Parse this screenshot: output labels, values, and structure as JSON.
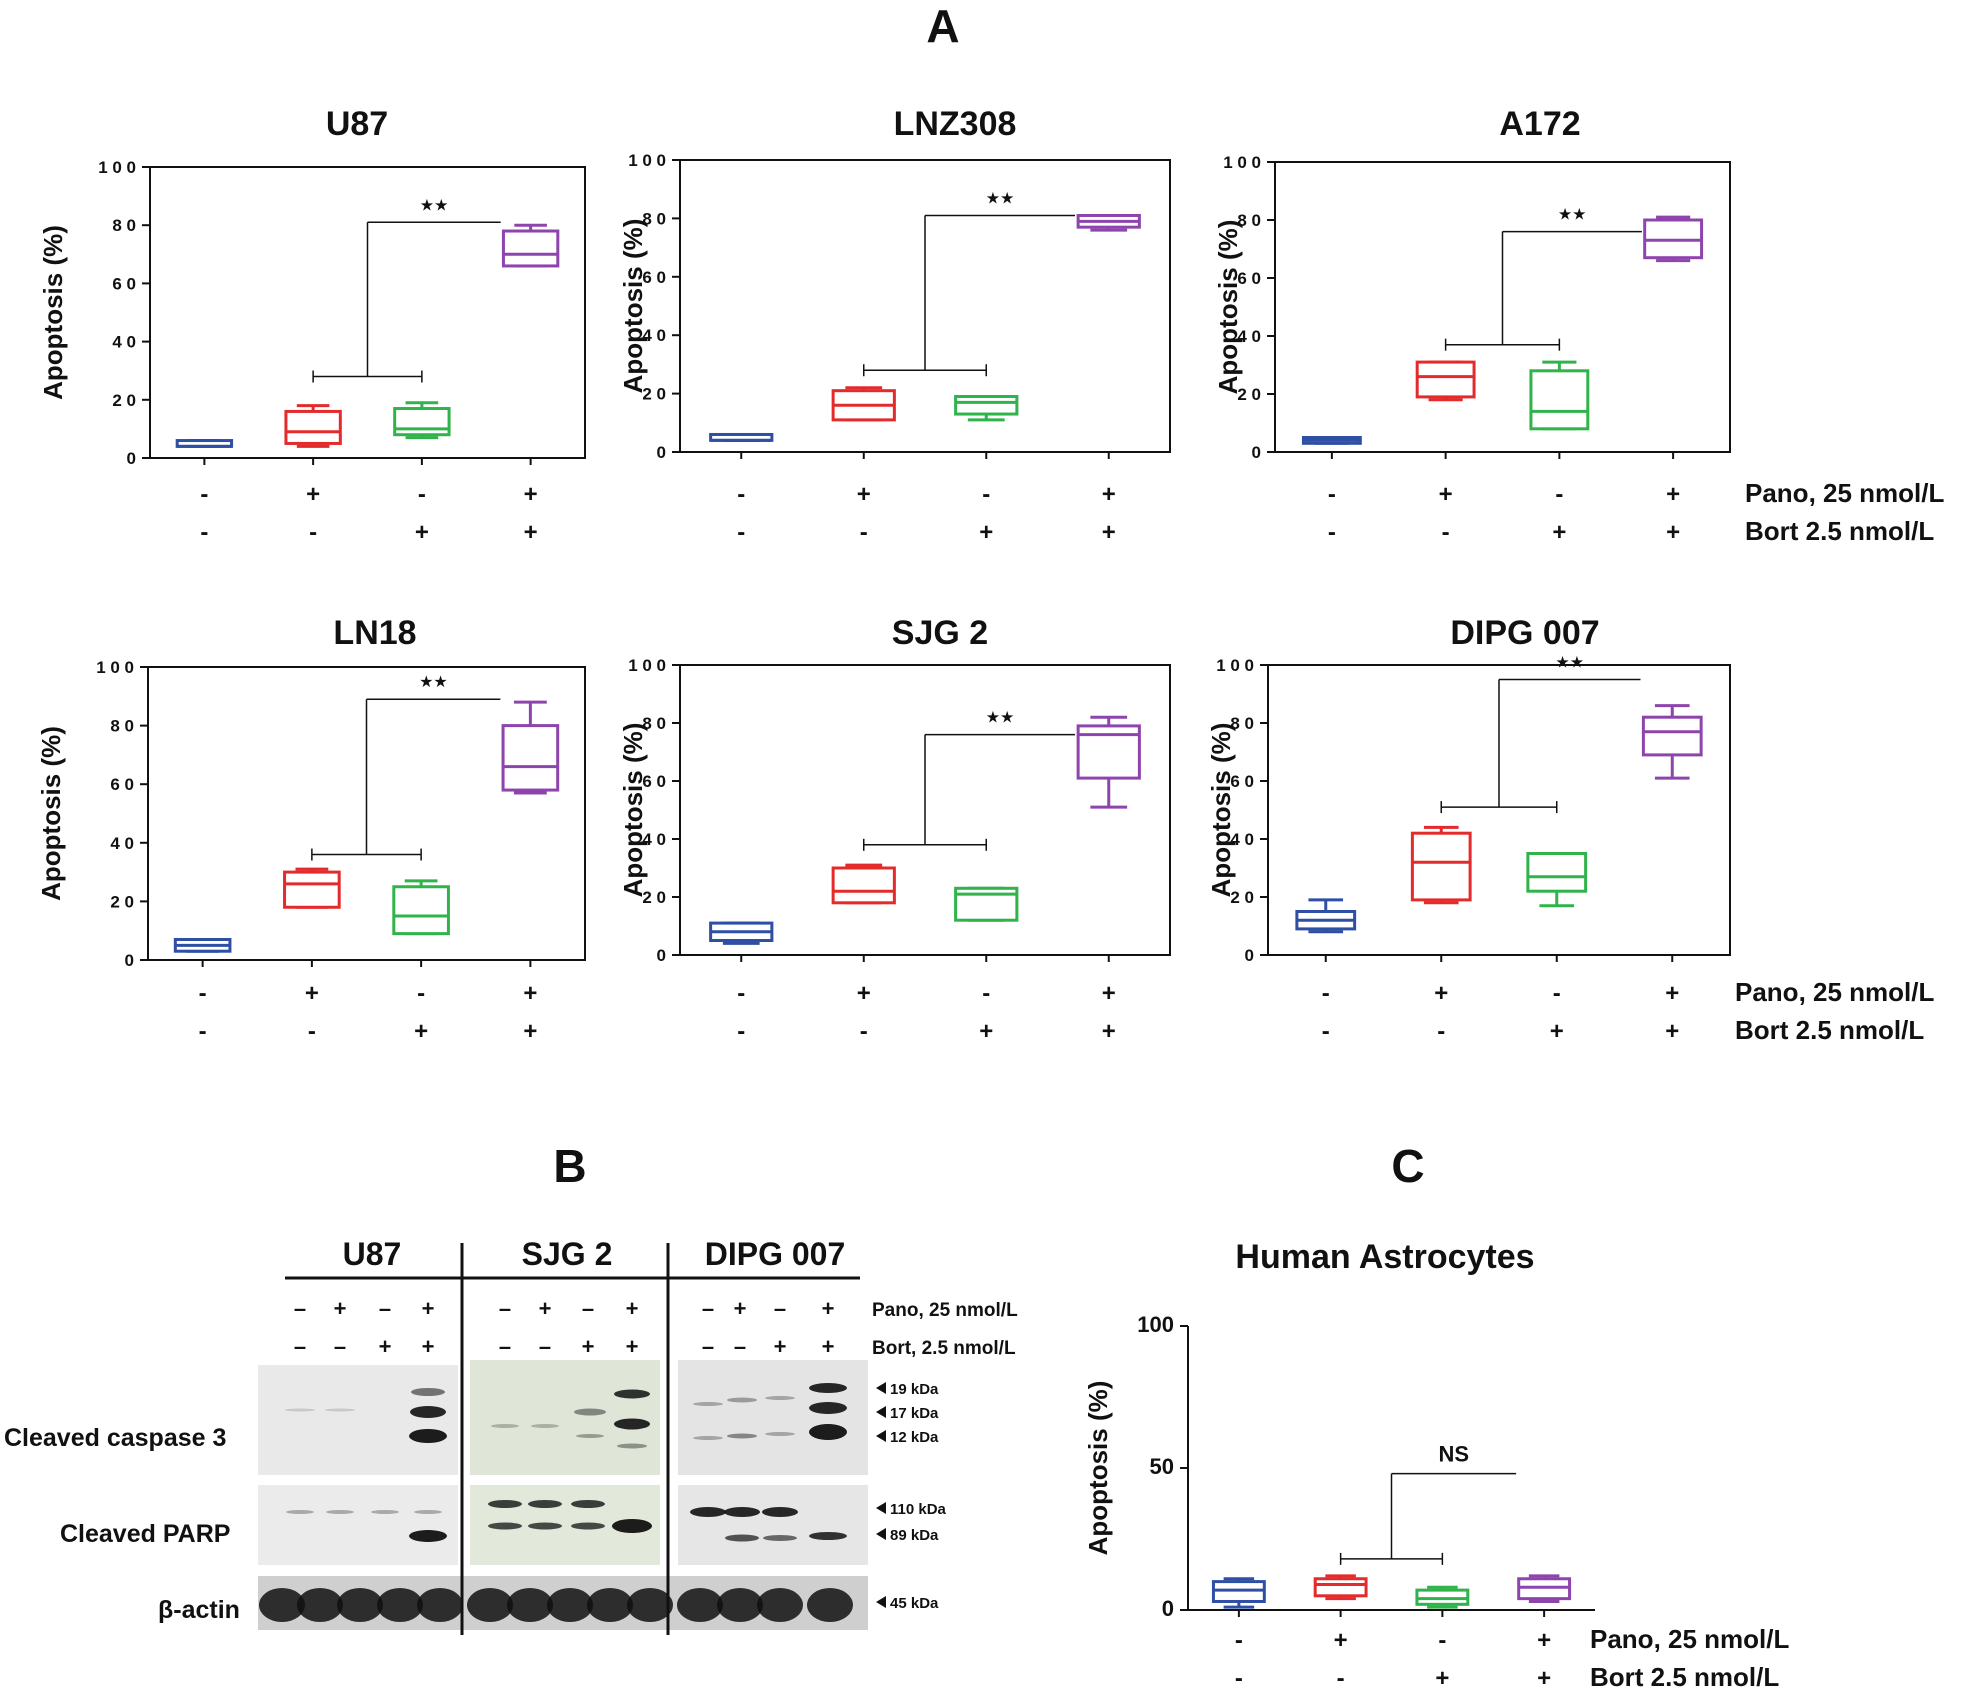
{
  "figure": {
    "label_a": "A",
    "label_b": "B",
    "label_c": "C",
    "y_axis_label": "Apoptosis (%)",
    "condition_labels": [
      "Pano, 25 nmol/L",
      "Bort 2.5 nmol/L"
    ],
    "pano_signs": [
      "-",
      "+",
      "-",
      "+"
    ],
    "bort_signs": [
      "-",
      "-",
      "+",
      "+"
    ],
    "group_colors": [
      "#2e4fa3",
      "#e32b2b",
      "#2fb34a",
      "#8e44ad"
    ]
  },
  "chart_data": [
    {
      "type": "box",
      "title": "U87",
      "ylim": [
        0,
        100
      ],
      "yticks": [
        "0",
        "20",
        "40",
        "60",
        "80",
        "100"
      ],
      "groups": [
        {
          "min": 4,
          "q1": 4,
          "median": 4,
          "q3": 6,
          "max": 6
        },
        {
          "min": 4,
          "q1": 5,
          "median": 9,
          "q3": 16,
          "max": 18
        },
        {
          "min": 7,
          "q1": 8,
          "median": 10,
          "q3": 17,
          "max": 19
        },
        {
          "min": 66,
          "q1": 66,
          "median": 70,
          "q3": 78,
          "max": 80
        }
      ],
      "significance": "★★",
      "comparison": {
        "from": [
          1,
          2
        ],
        "to": 3,
        "low_y": 28,
        "high_y": 81
      }
    },
    {
      "type": "box",
      "title": "LNZ308",
      "ylim": [
        0,
        100
      ],
      "yticks": [
        "0",
        "20",
        "40",
        "60",
        "80",
        "100"
      ],
      "groups": [
        {
          "min": 4,
          "q1": 4,
          "median": 4,
          "q3": 6,
          "max": 6
        },
        {
          "min": 11,
          "q1": 11,
          "median": 16,
          "q3": 21,
          "max": 22
        },
        {
          "min": 11,
          "q1": 13,
          "median": 17,
          "q3": 19,
          "max": 19
        },
        {
          "min": 76,
          "q1": 77,
          "median": 79,
          "q3": 81,
          "max": 81
        }
      ],
      "significance": "★★",
      "comparison": {
        "from": [
          1,
          2
        ],
        "to": 3,
        "low_y": 28,
        "high_y": 81
      }
    },
    {
      "type": "box",
      "title": "A172",
      "ylim": [
        0,
        100
      ],
      "yticks": [
        "0",
        "20",
        "40",
        "60",
        "80",
        "100"
      ],
      "groups": [
        {
          "min": 3,
          "q1": 3,
          "median": 4,
          "q3": 5,
          "max": 5
        },
        {
          "min": 18,
          "q1": 19,
          "median": 26,
          "q3": 31,
          "max": 31
        },
        {
          "min": 8,
          "q1": 8,
          "median": 14,
          "q3": 28,
          "max": 31
        },
        {
          "min": 66,
          "q1": 67,
          "median": 73,
          "q3": 80,
          "max": 81
        }
      ],
      "significance": "★★",
      "comparison": {
        "from": [
          1,
          2
        ],
        "to": 3,
        "low_y": 37,
        "high_y": 76
      }
    },
    {
      "type": "box",
      "title": "LN18",
      "ylim": [
        0,
        100
      ],
      "yticks": [
        "0",
        "20",
        "40",
        "60",
        "80",
        "100"
      ],
      "groups": [
        {
          "min": 3,
          "q1": 3,
          "median": 5,
          "q3": 7,
          "max": 7
        },
        {
          "min": 18,
          "q1": 18,
          "median": 26,
          "q3": 30,
          "max": 31
        },
        {
          "min": 9,
          "q1": 9,
          "median": 15,
          "q3": 25,
          "max": 27
        },
        {
          "min": 57,
          "q1": 58,
          "median": 66,
          "q3": 80,
          "max": 88
        }
      ],
      "significance": "★★",
      "comparison": {
        "from": [
          1,
          2
        ],
        "to": 3,
        "low_y": 36,
        "high_y": 89
      }
    },
    {
      "type": "box",
      "title": "SJG 2",
      "ylim": [
        0,
        100
      ],
      "yticks": [
        "0",
        "20",
        "40",
        "60",
        "80",
        "100"
      ],
      "groups": [
        {
          "min": 4,
          "q1": 5,
          "median": 8,
          "q3": 11,
          "max": 11
        },
        {
          "min": 18,
          "q1": 18,
          "median": 22,
          "q3": 30,
          "max": 31
        },
        {
          "min": 12,
          "q1": 12,
          "median": 21,
          "q3": 23,
          "max": 23
        },
        {
          "min": 51,
          "q1": 61,
          "median": 76,
          "q3": 79,
          "max": 82
        }
      ],
      "significance": "★★",
      "comparison": {
        "from": [
          1,
          2
        ],
        "to": 3,
        "low_y": 38,
        "high_y": 76
      }
    },
    {
      "type": "box",
      "title": "DIPG 007",
      "ylim": [
        0,
        100
      ],
      "yticks": [
        "0",
        "20",
        "40",
        "60",
        "80",
        "100"
      ],
      "groups": [
        {
          "min": 8,
          "q1": 9,
          "median": 12,
          "q3": 15,
          "max": 19
        },
        {
          "min": 18,
          "q1": 19,
          "median": 32,
          "q3": 42,
          "max": 44
        },
        {
          "min": 17,
          "q1": 22,
          "median": 27,
          "q3": 35,
          "max": 35
        },
        {
          "min": 61,
          "q1": 69,
          "median": 77,
          "q3": 82,
          "max": 86
        }
      ],
      "significance": "★★",
      "comparison": {
        "from": [
          1,
          2
        ],
        "to": 3,
        "low_y": 51,
        "high_y": 95
      }
    },
    {
      "type": "box",
      "title": "Human Astrocytes",
      "ylim": [
        0,
        100
      ],
      "yticks": [
        "0",
        "50",
        "100"
      ],
      "groups": [
        {
          "min": 1,
          "q1": 3,
          "median": 7,
          "q3": 10,
          "max": 11
        },
        {
          "min": 4,
          "q1": 5,
          "median": 9,
          "q3": 11,
          "max": 12
        },
        {
          "min": 1,
          "q1": 2,
          "median": 4,
          "q3": 7,
          "max": 8
        },
        {
          "min": 3,
          "q1": 4,
          "median": 8,
          "q3": 11,
          "max": 12
        }
      ],
      "significance": "NS",
      "comparison": {
        "from": [
          1,
          2
        ],
        "to": 3,
        "low_y": 18,
        "high_y": 48
      }
    }
  ],
  "western_blot": {
    "lanes": [
      "U87",
      "SJG 2",
      "DIPG 007"
    ],
    "pano_label": "Pano, 25 nmol/L",
    "bort_label": "Bort, 2.5 nmol/L",
    "pano_signs": [
      "–",
      "+",
      "–",
      "+"
    ],
    "bort_signs": [
      "–",
      "–",
      "+",
      "+"
    ],
    "rows": [
      "Cleaved caspase 3",
      "Cleaved PARP",
      "β-actin"
    ],
    "markers": [
      "19 kDa",
      "17 kDa",
      "12 kDa",
      "110 kDa",
      "89 kDa",
      "45 kDa"
    ]
  }
}
